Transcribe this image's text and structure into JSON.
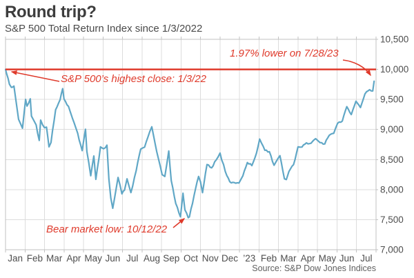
{
  "header": {
    "title": "Round trip?",
    "subtitle": "S&P 500 Total Return Index since 1/3/2022"
  },
  "annotations": {
    "highest_close": "S&P 500’s highest close: 1/3/22",
    "lower_now": "1.97% lower on 7/28/23",
    "bear_low": "Bear market low: 10/12/22"
  },
  "source": "Source: S&P Dow Jones Indices",
  "colors": {
    "line": "#60a7c6",
    "accent_red": "#df3a2b",
    "grid": "#dcdcdc",
    "plot_border": "#c2c2c2",
    "tick_text": "#4d4d4d",
    "title_text": "#3d3d3d"
  },
  "chart_data": {
    "type": "line",
    "title": "Round trip?",
    "subtitle": "S&P 500 Total Return Index since 1/3/2022",
    "ylim": [
      7000,
      10500
    ],
    "grid": true,
    "y_ticks": [
      10500,
      10000,
      9500,
      9000,
      8500,
      8000,
      7500,
      7000
    ],
    "y_tick_labels": [
      "10,500",
      "10,000",
      "9,500",
      "9,000",
      "8,500",
      "8,000",
      "7,500",
      "7,000"
    ],
    "x_tick_labels": [
      "Jan",
      "Feb",
      "Mar",
      "Apr",
      "May",
      "Jun",
      "Jul",
      "Aug",
      "Sep",
      "Oct",
      "Nov",
      "Dec",
      "’23",
      "Feb",
      "Mar",
      "Apr",
      "May",
      "Jun",
      "Jul"
    ],
    "x_axis_span_months": 19,
    "reference_line": {
      "value": 10000,
      "label": "S&P 500’s highest close: 1/3/22"
    },
    "key_points": {
      "peak": {
        "date": "1/3/22",
        "value": 10000
      },
      "bear_low": {
        "date": "10/12/22",
        "value": 7533
      },
      "last": {
        "date": "7/28/23",
        "value": 9803,
        "pct_below_peak": "1.97%"
      }
    },
    "series": [
      {
        "name": "S&P 500 Total Return Index",
        "x_unit": "months-since-Jan-2022",
        "x": [
          0.0,
          0.13,
          0.2,
          0.3,
          0.43,
          0.55,
          0.67,
          0.77,
          0.87,
          1.03,
          1.1,
          1.27,
          1.33,
          1.45,
          1.57,
          1.73,
          1.8,
          2.0,
          2.1,
          2.23,
          2.33,
          2.57,
          2.8,
          2.93,
          3.0,
          3.23,
          3.43,
          3.7,
          3.93,
          4.1,
          4.17,
          4.37,
          4.53,
          4.63,
          4.87,
          5.03,
          5.2,
          5.3,
          5.4,
          5.5,
          5.77,
          5.97,
          6.1,
          6.23,
          6.43,
          6.7,
          6.93,
          7.13,
          7.3,
          7.5,
          7.6,
          7.83,
          8.03,
          8.17,
          8.37,
          8.5,
          8.73,
          8.97,
          9.1,
          9.2,
          9.37,
          9.43,
          9.67,
          9.9,
          10.0,
          10.1,
          10.33,
          10.57,
          10.8,
          11.0,
          11.27,
          11.5,
          11.73,
          11.97,
          12.17,
          12.4,
          12.63,
          12.87,
          13.03,
          13.3,
          13.53,
          13.77,
          14.07,
          14.3,
          14.4,
          14.53,
          14.77,
          15.0,
          15.2,
          15.43,
          15.67,
          15.9,
          16.13,
          16.37,
          16.6,
          16.83,
          17.03,
          17.27,
          17.5,
          17.73,
          17.97,
          18.2,
          18.43,
          18.67,
          18.83,
          18.9
        ],
        "y": [
          10000,
          9850,
          9752,
          9700,
          9722,
          9450,
          9170,
          9095,
          9021,
          9500,
          9389,
          9510,
          9223,
          9150,
          9076,
          8818,
          9156,
          9030,
          9039,
          8711,
          8782,
          9328,
          9495,
          9679,
          9506,
          9384,
          9190,
          8937,
          8648,
          9005,
          8634,
          8230,
          8560,
          8171,
          8711,
          8680,
          8740,
          8177,
          7860,
          7690,
          8203,
          7930,
          7990,
          8180,
          7950,
          8316,
          8673,
          8705,
          8870,
          9045,
          8883,
          8530,
          8248,
          8219,
          8643,
          8149,
          7770,
          7549,
          7940,
          7662,
          7533,
          7546,
          7904,
          8219,
          8127,
          7949,
          8417,
          8362,
          8491,
          8608,
          8301,
          8131,
          8117,
          8110,
          8230,
          8450,
          8399,
          8606,
          8841,
          8654,
          8631,
          8405,
          8565,
          8180,
          8167,
          8300,
          8415,
          8711,
          8707,
          8777,
          8772,
          8847,
          8781,
          8759,
          8904,
          8936,
          9104,
          9140,
          9380,
          9248,
          9470,
          9365,
          9591,
          9662,
          9640,
          9803
        ]
      }
    ]
  }
}
